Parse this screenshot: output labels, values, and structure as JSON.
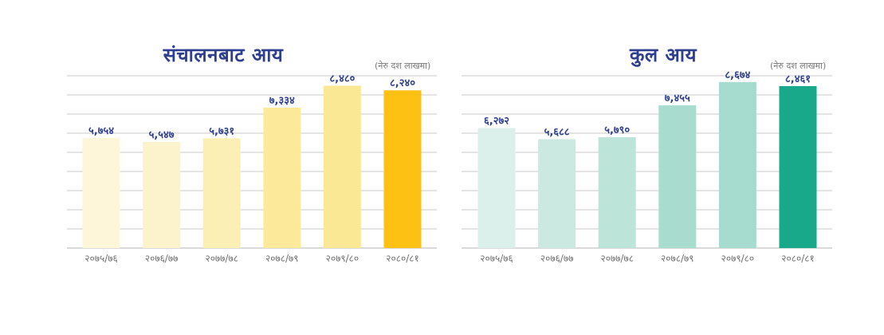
{
  "chart_data": [
    {
      "type": "bar",
      "title": "संचालनबाट आय",
      "unit_note": "(नेरु दश लाखमा)",
      "categories": [
        "२०७५/७६",
        "२०७६/७७",
        "२०७७/७८",
        "२०७८/७९",
        "२०७९/८०",
        "२०८०/८१"
      ],
      "values": [
        5754,
        5547,
        5731,
        7334,
        8480,
        8240
      ],
      "value_labels": [
        "५,७५४",
        "५,५४७",
        "५,७३१",
        "७,३३४",
        "८,४८०",
        "८,२४०"
      ],
      "bar_colors": [
        "#fdf6d8",
        "#fcf2cc",
        "#fcefb4",
        "#fde99a",
        "#fbe895",
        "#fcc112"
      ],
      "ylim": [
        0,
        9000
      ],
      "grid": true,
      "legend": "none"
    },
    {
      "type": "bar",
      "title": "कुल आय",
      "unit_note": "(नेरु दश लाखमा)",
      "categories": [
        "२०७५/७६",
        "२०७६/७७",
        "२०७७/७८",
        "२०७८/७९",
        "२०७९/८०",
        "२०८०/८१"
      ],
      "values": [
        6272,
        5688,
        5790,
        7455,
        8674,
        8461
      ],
      "value_labels": [
        "६,२७२",
        "५,६८८",
        "५,७९०",
        "७,४५५",
        "८,६७४",
        "८,४६१"
      ],
      "bar_colors": [
        "#dbf0ea",
        "#cbe9e0",
        "#bde4d9",
        "#a7dccf",
        "#a6dccf",
        "#18a98a"
      ],
      "ylim": [
        0,
        9000
      ],
      "grid": true,
      "legend": "none"
    }
  ]
}
